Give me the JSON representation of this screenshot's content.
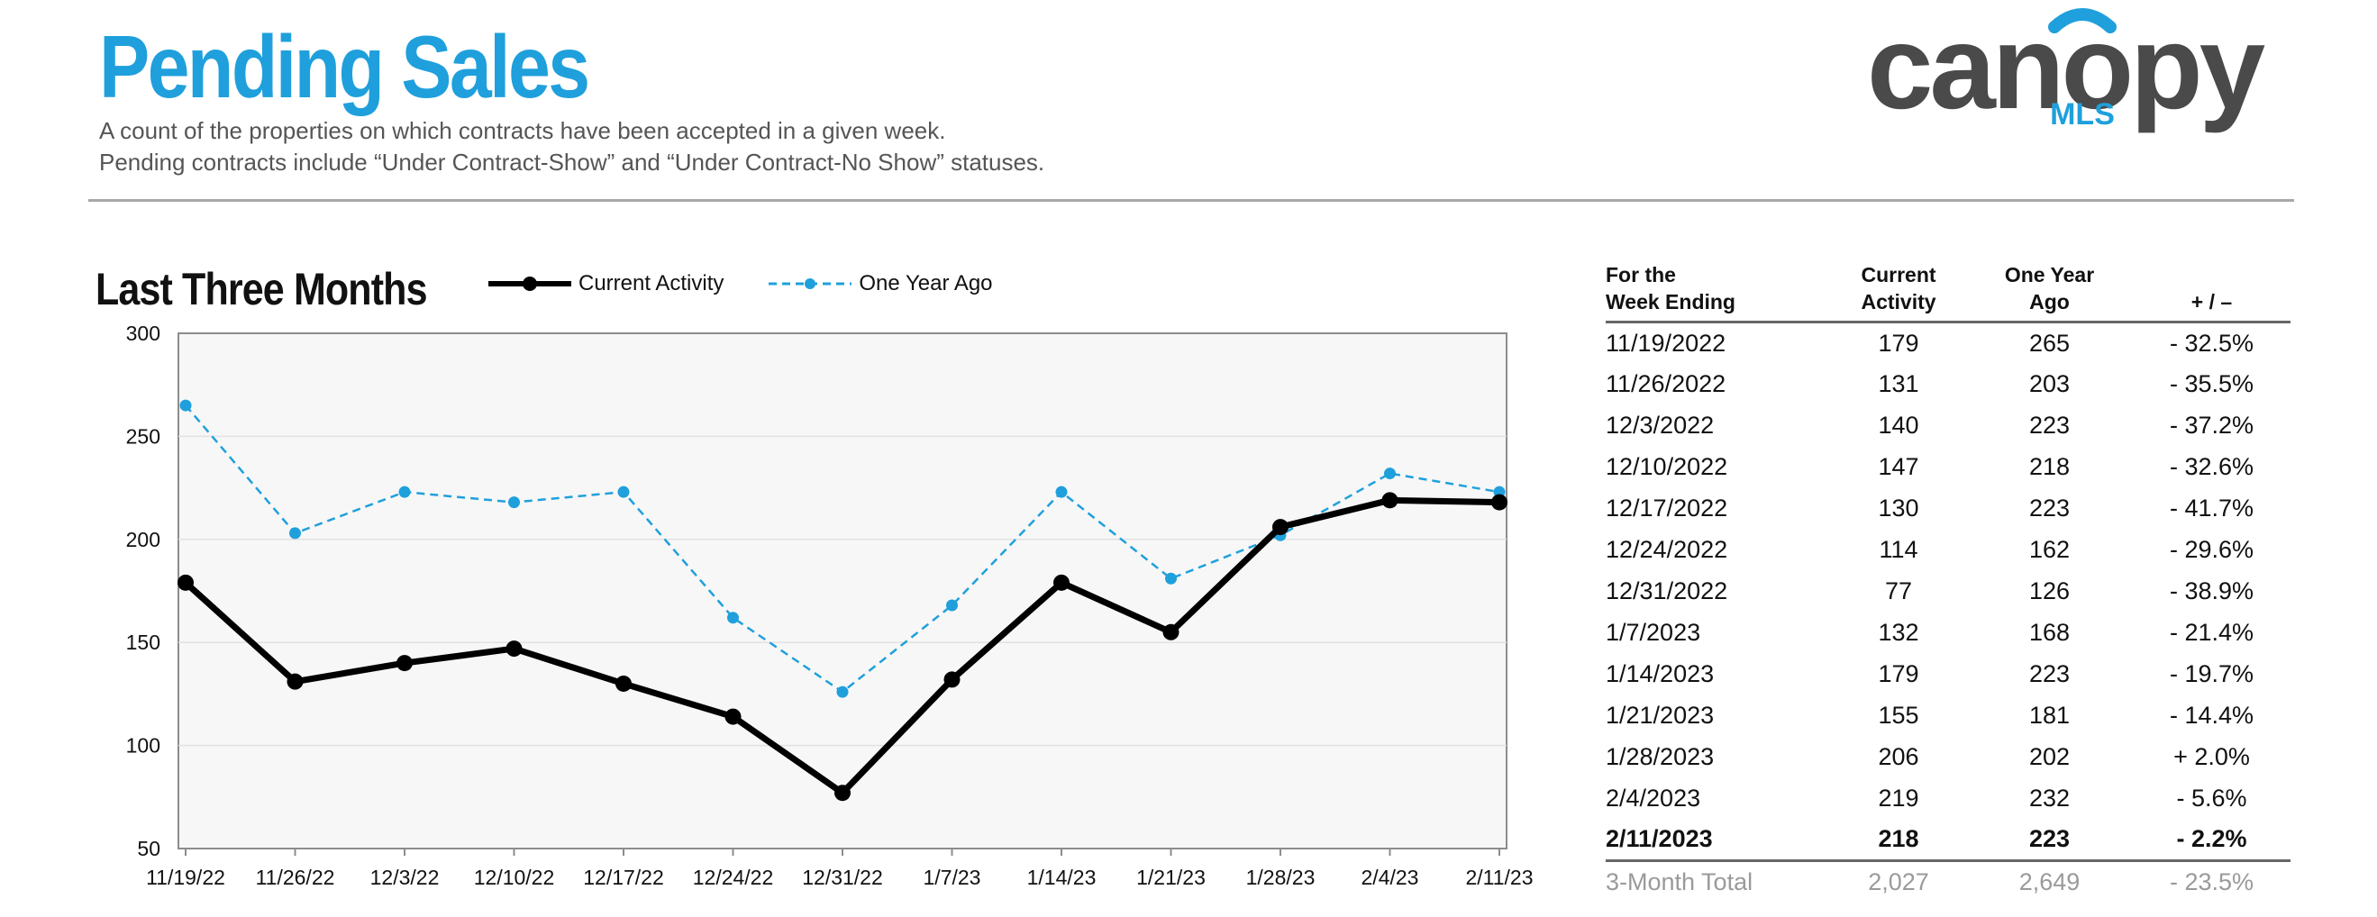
{
  "header": {
    "title": "Pending Sales",
    "subtitle_line1": "A count of the properties on which contracts have been accepted in a given week.",
    "subtitle_line2": "Pending contracts include “Under Contract-Show” and “Under Contract-No Show” statuses."
  },
  "logo": {
    "text": "canopy",
    "sub": "MLS",
    "icon": "canopy-logo-icon"
  },
  "section_title": "Last Three Months",
  "legend": {
    "current": "Current Activity",
    "year_ago": "One Year Ago"
  },
  "colors": {
    "current": "#000000",
    "year_ago": "#1fa0dc",
    "title": "#1fa0dc",
    "logo_gray": "#4a4a4a"
  },
  "chart_data": {
    "type": "line",
    "categories": [
      "11/19/22",
      "11/26/22",
      "12/3/22",
      "12/10/22",
      "12/17/22",
      "12/24/22",
      "12/31/22",
      "1/7/23",
      "1/14/23",
      "1/21/23",
      "1/28/23",
      "2/4/23",
      "2/11/23"
    ],
    "series": [
      {
        "name": "Current Activity",
        "values": [
          179,
          131,
          140,
          147,
          130,
          114,
          77,
          132,
          179,
          155,
          206,
          219,
          218
        ]
      },
      {
        "name": "One Year Ago",
        "values": [
          265,
          203,
          223,
          218,
          223,
          162,
          126,
          168,
          223,
          181,
          202,
          232,
          223
        ]
      }
    ],
    "ylim": [
      50,
      300
    ],
    "yticks": [
      50,
      100,
      150,
      200,
      250,
      300
    ],
    "grid": true,
    "legend": "top"
  },
  "table": {
    "headers": [
      "For the\nWeek Ending",
      "Current\nActivity",
      "One Year\nAgo",
      "+ / –"
    ],
    "header_lines": [
      [
        "For the",
        "Week Ending"
      ],
      [
        "Current",
        "Activity"
      ],
      [
        "One Year",
        "Ago"
      ],
      [
        "+ / –"
      ]
    ],
    "rows": [
      [
        "11/19/2022",
        "179",
        "265",
        "- 32.5%"
      ],
      [
        "11/26/2022",
        "131",
        "203",
        "- 35.5%"
      ],
      [
        "12/3/2022",
        "140",
        "223",
        "- 37.2%"
      ],
      [
        "12/10/2022",
        "147",
        "218",
        "- 32.6%"
      ],
      [
        "12/17/2022",
        "130",
        "223",
        "- 41.7%"
      ],
      [
        "12/24/2022",
        "114",
        "162",
        "- 29.6%"
      ],
      [
        "12/31/2022",
        "77",
        "126",
        "- 38.9%"
      ],
      [
        "1/7/2023",
        "132",
        "168",
        "- 21.4%"
      ],
      [
        "1/14/2023",
        "179",
        "223",
        "- 19.7%"
      ],
      [
        "1/21/2023",
        "155",
        "181",
        "- 14.4%"
      ],
      [
        "1/28/2023",
        "206",
        "202",
        "+ 2.0%"
      ],
      [
        "2/4/2023",
        "219",
        "232",
        "- 5.6%"
      ],
      [
        "2/11/2023",
        "218",
        "223",
        "- 2.2%"
      ]
    ],
    "total": [
      "3-Month Total",
      "2,027",
      "2,649",
      "- 23.5%"
    ]
  }
}
